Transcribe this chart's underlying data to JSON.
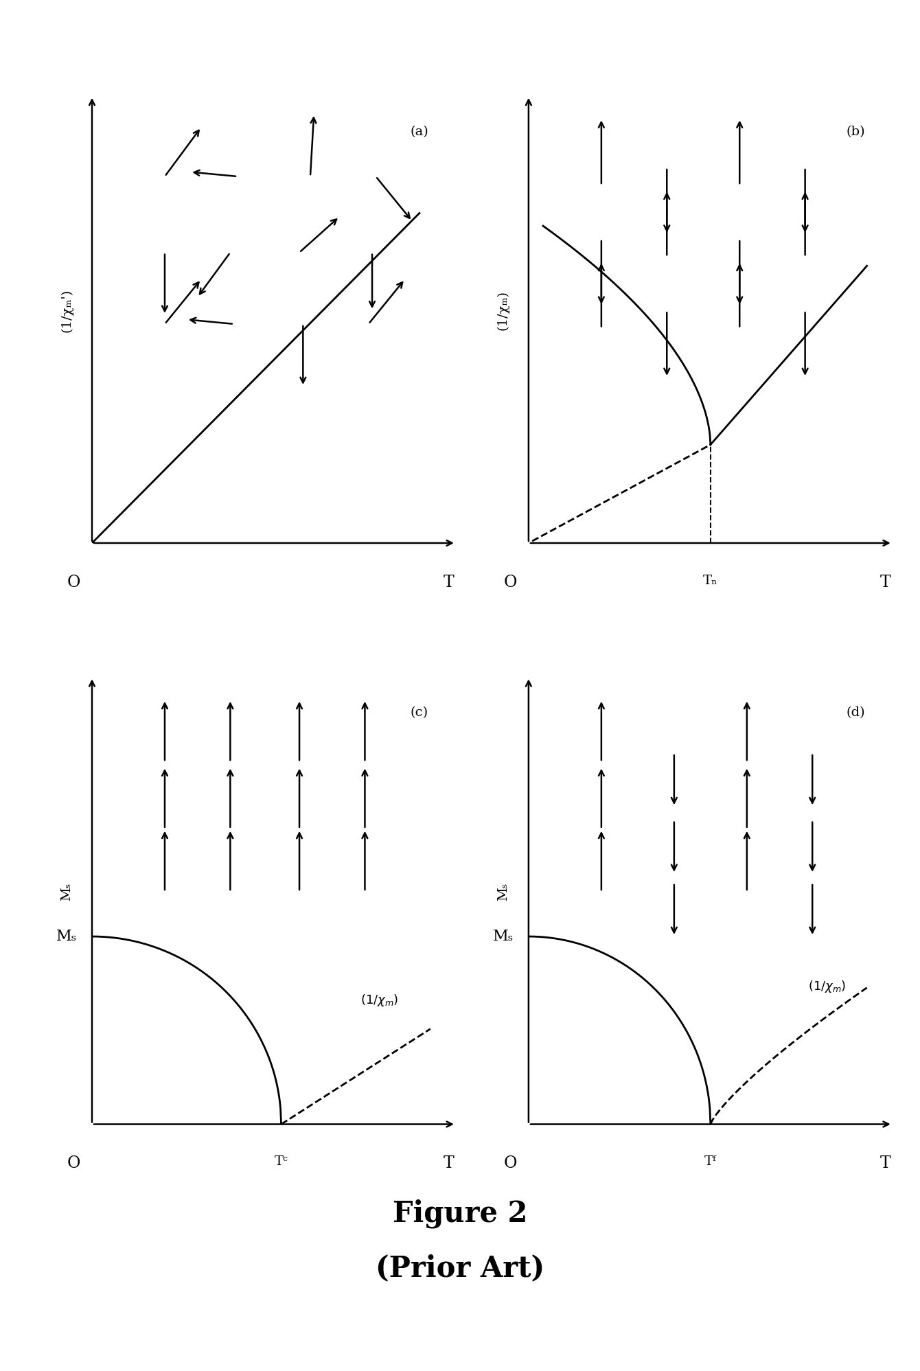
{
  "bg_color": "#ffffff",
  "title_line1": "Figure 2",
  "title_line2": "(Prior Art)",
  "title_fontsize": 30,
  "panel_labels": [
    "(a)",
    "(b)",
    "(c)",
    "(d)"
  ],
  "panel_a_ylabel": "(1/χₘ')",
  "panel_b_ylabel": "(1/χₘ)",
  "panel_c_ylabel": "Mₛ",
  "panel_d_ylabel": "Mₛ",
  "panel_a_xlabel": "T",
  "panel_b_xlabel": "T",
  "panel_c_xlabel": "T",
  "panel_d_xlabel": "T",
  "panel_b_xN": "Tₙ",
  "panel_c_xC": "Tᶜ",
  "panel_d_xF": "Tᶠ",
  "origin_label": "O"
}
